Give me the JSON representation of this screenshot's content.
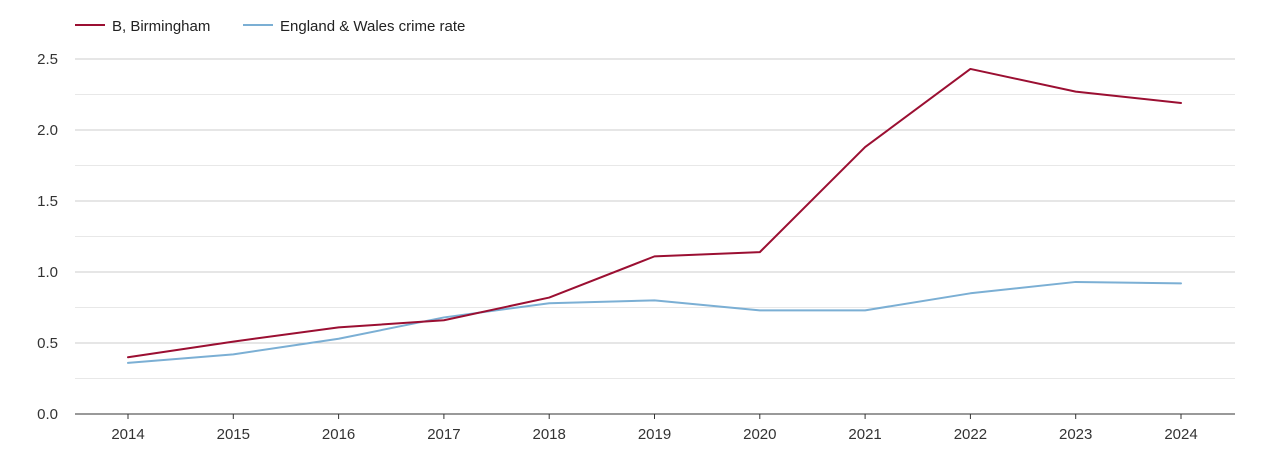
{
  "chart_data": {
    "type": "line",
    "title": "",
    "xlabel": "",
    "ylabel": "",
    "x": [
      2014,
      2015,
      2016,
      2017,
      2018,
      2019,
      2020,
      2021,
      2022,
      2023,
      2024
    ],
    "x_tick_labels": [
      "2014",
      "2015",
      "2016",
      "2017",
      "2018",
      "2019",
      "2020",
      "2021",
      "2022",
      "2023",
      "2024"
    ],
    "ylim": [
      0,
      2.5
    ],
    "y_ticks": [
      0.0,
      0.5,
      1.0,
      1.5,
      2.0,
      2.5
    ],
    "y_tick_labels": [
      "0.0",
      "0.5",
      "1.0",
      "1.5",
      "2.0",
      "2.5"
    ],
    "grid": true,
    "legend_position": "top-left",
    "series": [
      {
        "name": "B, Birmingham",
        "color": "#9b0f32",
        "values": [
          0.4,
          0.51,
          0.61,
          0.66,
          0.82,
          1.11,
          1.14,
          1.88,
          2.43,
          2.27,
          2.19
        ]
      },
      {
        "name": "England & Wales crime rate",
        "color": "#7bafd4",
        "values": [
          0.36,
          0.42,
          0.53,
          0.68,
          0.78,
          0.8,
          0.73,
          0.73,
          0.85,
          0.93,
          0.92
        ]
      }
    ]
  }
}
